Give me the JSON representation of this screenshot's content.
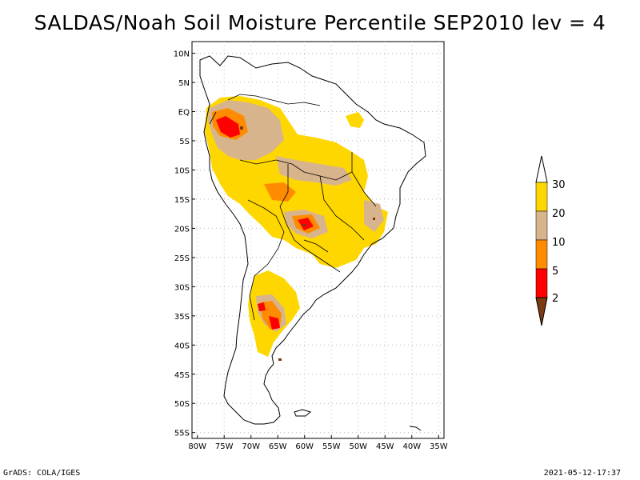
{
  "title": "SALDAS/Noah Soil Moisture Percentile SEP2010 lev = 4",
  "footer": {
    "left": "GrADS: COLA/IGES",
    "right": "2021-05-12-17:37"
  },
  "map": {
    "lat_labels": [
      "10N",
      "5N",
      "EQ",
      "5S",
      "10S",
      "15S",
      "20S",
      "25S",
      "30S",
      "35S",
      "40S",
      "45S",
      "50S",
      "55S"
    ],
    "lon_labels": [
      "80W",
      "75W",
      "70W",
      "65W",
      "60W",
      "55W",
      "50W",
      "45W",
      "40W",
      "35W"
    ],
    "lat_range": [
      12,
      -56
    ],
    "lon_range": [
      -81,
      -34
    ],
    "grid": true,
    "colors": {
      "coast": "#000000",
      "grid": "#b8b8b8",
      "lt2": "#7a3a12",
      "c2_5": "#ff0000",
      "c5_10": "#ff8c00",
      "c10_20": "#d8b48c",
      "c20_30": "#ffd700"
    }
  },
  "legend": {
    "levels": [
      "30",
      "20",
      "10",
      "5",
      "2"
    ],
    "colors": [
      "#ffffff",
      "#ffd700",
      "#d8b48c",
      "#ff8c00",
      "#ff0000",
      "#7a3a12"
    ]
  }
}
